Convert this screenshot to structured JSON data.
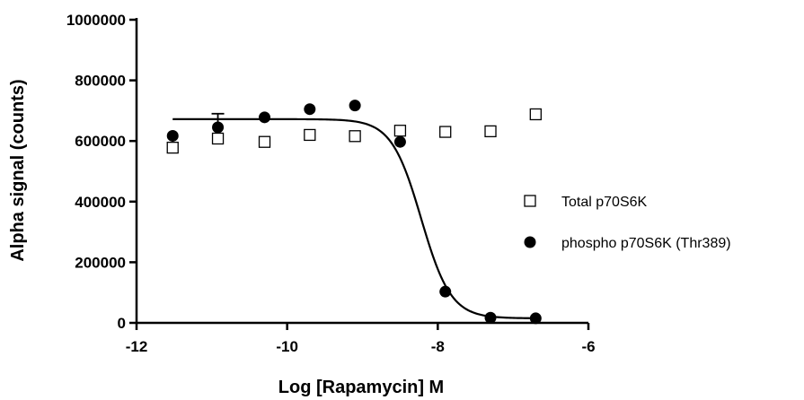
{
  "chart_data": {
    "type": "scatter",
    "xlabel": "Log [Rapamycin] M",
    "ylabel": "Alpha signal (counts)",
    "xlim": [
      -12,
      -6
    ],
    "ylim": [
      0,
      1000000
    ],
    "x_ticks": [
      -12,
      -10,
      -8,
      -6
    ],
    "x_tick_labels": [
      "-12",
      "-10",
      "-8",
      "-6"
    ],
    "y_ticks": [
      0,
      200000,
      400000,
      600000,
      800000,
      1000000
    ],
    "y_tick_labels": [
      "0",
      "200000",
      "400000",
      "600000",
      "800000",
      "1000000"
    ],
    "grid": false,
    "legend_position": "right",
    "series": [
      {
        "name": "Total p70S6K",
        "marker": "open-square",
        "color": "#000000",
        "x": [
          -11.52,
          -10.92,
          -10.3,
          -9.7,
          -9.1,
          -8.5,
          -7.9,
          -7.3,
          -6.7
        ],
        "y": [
          578000,
          608000,
          597000,
          620000,
          616000,
          634000,
          630000,
          632000,
          688000
        ]
      },
      {
        "name": "phospho p70S6K (Thr389)",
        "marker": "filled-circle",
        "color": "#000000",
        "x": [
          -11.52,
          -10.92,
          -10.3,
          -9.7,
          -9.1,
          -8.5,
          -7.9,
          -7.3,
          -6.7
        ],
        "y": [
          617000,
          645000,
          678000,
          705000,
          717000,
          597000,
          103000,
          17000,
          15000
        ],
        "error_top": [
          null,
          690000,
          null,
          null,
          null,
          null,
          null,
          null,
          null
        ],
        "fit": {
          "model": "sigmoidal",
          "top": 672000,
          "bottom": 15000,
          "log_ic50": -8.22,
          "hill_slope": -2.2,
          "x_from": -11.52,
          "x_to": -6.7
        }
      }
    ]
  }
}
